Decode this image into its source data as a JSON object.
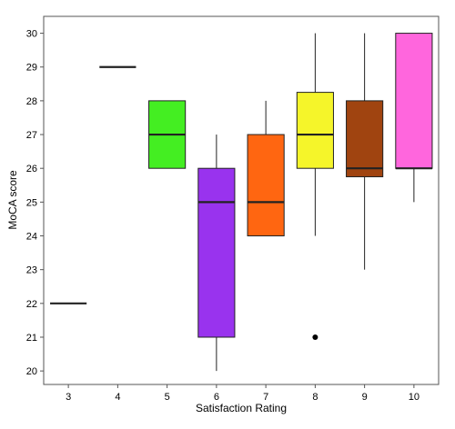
{
  "chart_data": {
    "type": "box",
    "title": "",
    "xlabel": "Satisfaction Rating",
    "ylabel": "MoCA score",
    "categories": [
      "3",
      "4",
      "5",
      "6",
      "7",
      "8",
      "9",
      "10"
    ],
    "yticks": [
      20,
      21,
      22,
      23,
      24,
      25,
      26,
      27,
      28,
      29,
      30
    ],
    "ylim": [
      19.6,
      30.5
    ],
    "grid": false,
    "legend": "none",
    "boxes": [
      {
        "category": "3",
        "min": 22,
        "q1": 22,
        "median": 22,
        "q3": 22,
        "max": 22,
        "outliers": [],
        "color": "#000000"
      },
      {
        "category": "4",
        "min": 29,
        "q1": 29,
        "median": 29,
        "q3": 29,
        "max": 29,
        "outliers": [],
        "color": "#000000"
      },
      {
        "category": "5",
        "min": 26,
        "q1": 26,
        "median": 27,
        "q3": 28,
        "max": 28,
        "outliers": [],
        "color": "#44ee22"
      },
      {
        "category": "6",
        "min": 20,
        "q1": 21,
        "median": 25,
        "q3": 26,
        "max": 27,
        "outliers": [],
        "color": "#9933ee"
      },
      {
        "category": "7",
        "min": 24,
        "q1": 24,
        "median": 25,
        "q3": 27,
        "max": 28,
        "outliers": [],
        "color": "#ff6611"
      },
      {
        "category": "8",
        "min": 24,
        "q1": 26,
        "median": 27,
        "q3": 28.25,
        "max": 30,
        "outliers": [
          21
        ],
        "color": "#f5f52a"
      },
      {
        "category": "9",
        "min": 23,
        "q1": 25.75,
        "median": 26,
        "q3": 28,
        "max": 30,
        "outliers": [],
        "color": "#a04410"
      },
      {
        "category": "10",
        "min": 25,
        "q1": 26,
        "median": 26,
        "q3": 30,
        "max": 30,
        "outliers": [],
        "color": "#ff66dd"
      }
    ]
  }
}
